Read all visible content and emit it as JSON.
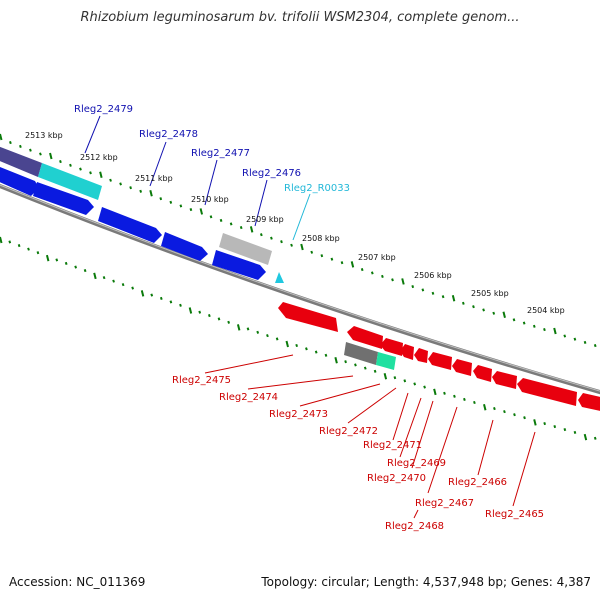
{
  "title": "Rhizobium leguminosarum bv. trifolii WSM2304, complete genom...",
  "accession": "Accession: NC_011369",
  "topology": "Topology: circular; Length: 4,537,948 bp; Genes: 4,387",
  "colors": {
    "forward_gene": "#0a1ae0",
    "reverse_gene": "#e8000e",
    "trna": "#00c8c8",
    "rrna_other": "#808080",
    "forward_label": "#1010b0",
    "reverse_label": "#cc0000",
    "trna_label": "#22b8d8",
    "ticks": "#0a7a0a",
    "backbone": "#888888"
  },
  "kbp_labels": [
    "2513 kbp",
    "2512 kbp",
    "2511 kbp",
    "2510 kbp",
    "2509 kbp",
    "2508 kbp",
    "2507 kbp",
    "2506 kbp",
    "2505 kbp",
    "2504 kbp"
  ],
  "forward_labels": [
    "Rleg2_2479",
    "Rleg2_2478",
    "Rleg2_2477",
    "Rleg2_2476"
  ],
  "trna_labels": [
    "Rleg2_R0033"
  ],
  "reverse_labels": [
    "Rleg2_2475",
    "Rleg2_2474",
    "Rleg2_2473",
    "Rleg2_2472",
    "Rleg2_2471",
    "Rleg2_2469",
    "Rleg2_2470",
    "Rleg2_2467",
    "Rleg2_2466",
    "Rleg2_2468",
    "Rleg2_2465"
  ]
}
